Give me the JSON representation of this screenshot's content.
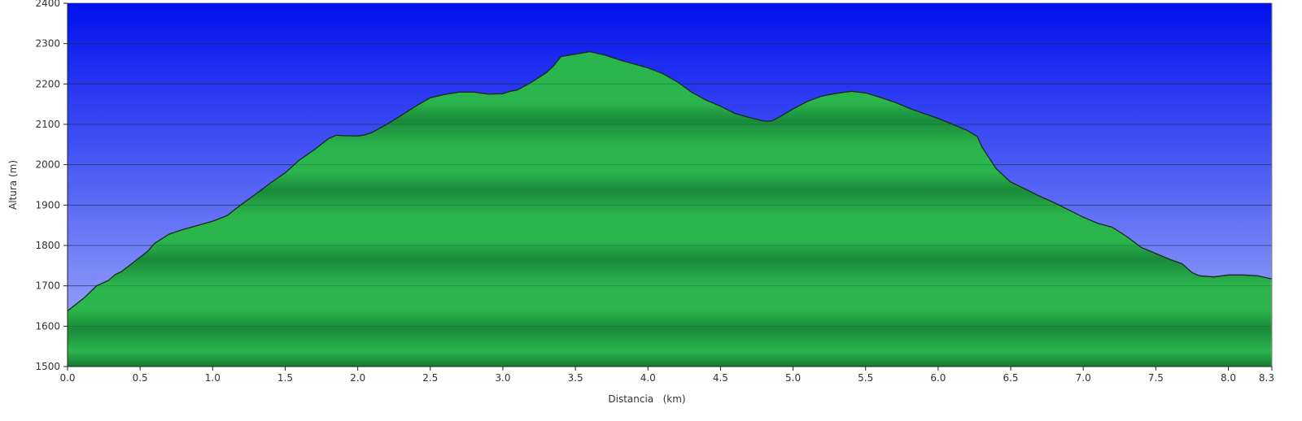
{
  "chart_data": {
    "type": "area",
    "title": "",
    "xlabel": "Distancia   (km)",
    "ylabel": "Altura (m)",
    "xlim": [
      0,
      8.3
    ],
    "ylim": [
      1500,
      2400
    ],
    "x_ticks": [
      0.0,
      0.5,
      1.0,
      1.5,
      2.0,
      2.5,
      3.0,
      3.5,
      4.0,
      4.5,
      5.0,
      5.5,
      6.0,
      6.5,
      7.0,
      7.5,
      8.0,
      8.3
    ],
    "x_tick_labels": [
      "0.0",
      "0.5",
      "1.0",
      "1.5",
      "2.0",
      "2.5",
      "3.0",
      "3.5",
      "4.0",
      "4.5",
      "5.0",
      "5.5",
      "6.0",
      "6.5",
      "7.0",
      "7.5",
      "8.0",
      "8.3"
    ],
    "y_ticks": [
      1500,
      1600,
      1700,
      1800,
      1900,
      2000,
      2100,
      2200,
      2300,
      2400
    ],
    "y_tick_labels": [
      "1500",
      "1600",
      "1700",
      "1800",
      "1900",
      "2000",
      "2100",
      "2200",
      "2300",
      "2400"
    ],
    "grid": true,
    "colors": {
      "sky_top": "#0011ee",
      "sky_bottom": "#a8b4fb",
      "terrain_light": "#2bb54d",
      "terrain_dark": "#157a33",
      "outline": "#1a2a1a"
    },
    "series": [
      {
        "x": [
          0.0,
          0.12,
          0.2,
          0.28,
          0.33,
          0.37,
          0.45,
          0.55,
          0.6,
          0.7,
          0.8,
          0.9,
          1.0,
          1.1,
          1.2,
          1.3,
          1.4,
          1.5,
          1.6,
          1.7,
          1.8,
          1.85,
          1.9,
          2.0,
          2.05,
          2.1,
          2.2,
          2.3,
          2.4,
          2.5,
          2.6,
          2.7,
          2.8,
          2.9,
          3.0,
          3.05,
          3.1,
          3.2,
          3.3,
          3.35,
          3.4,
          3.5,
          3.6,
          3.7,
          3.8,
          3.9,
          4.0,
          4.1,
          4.2,
          4.3,
          4.4,
          4.5,
          4.6,
          4.7,
          4.8,
          4.85,
          4.9,
          5.0,
          5.1,
          5.2,
          5.3,
          5.4,
          5.5,
          5.6,
          5.7,
          5.8,
          5.9,
          6.0,
          6.1,
          6.2,
          6.27,
          6.3,
          6.4,
          6.5,
          6.6,
          6.7,
          6.8,
          6.9,
          7.0,
          7.1,
          7.2,
          7.3,
          7.4,
          7.5,
          7.6,
          7.68,
          7.75,
          7.8,
          7.9,
          8.0,
          8.1,
          8.2,
          8.3
        ],
        "y": [
          1638,
          1672,
          1700,
          1713,
          1728,
          1735,
          1757,
          1785,
          1805,
          1828,
          1840,
          1850,
          1860,
          1874,
          1902,
          1928,
          1955,
          1980,
          2012,
          2037,
          2065,
          2073,
          2072,
          2071,
          2074,
          2080,
          2100,
          2122,
          2145,
          2166,
          2174,
          2180,
          2180,
          2175,
          2176,
          2182,
          2185,
          2205,
          2228,
          2245,
          2268,
          2274,
          2280,
          2272,
          2260,
          2250,
          2240,
          2226,
          2206,
          2180,
          2160,
          2145,
          2127,
          2117,
          2108,
          2108,
          2117,
          2138,
          2157,
          2170,
          2177,
          2182,
          2178,
          2167,
          2155,
          2140,
          2127,
          2115,
          2100,
          2085,
          2070,
          2045,
          1990,
          1957,
          1940,
          1922,
          1906,
          1888,
          1870,
          1855,
          1845,
          1822,
          1795,
          1780,
          1765,
          1755,
          1733,
          1725,
          1722,
          1727,
          1727,
          1725,
          1717
        ]
      }
    ]
  }
}
